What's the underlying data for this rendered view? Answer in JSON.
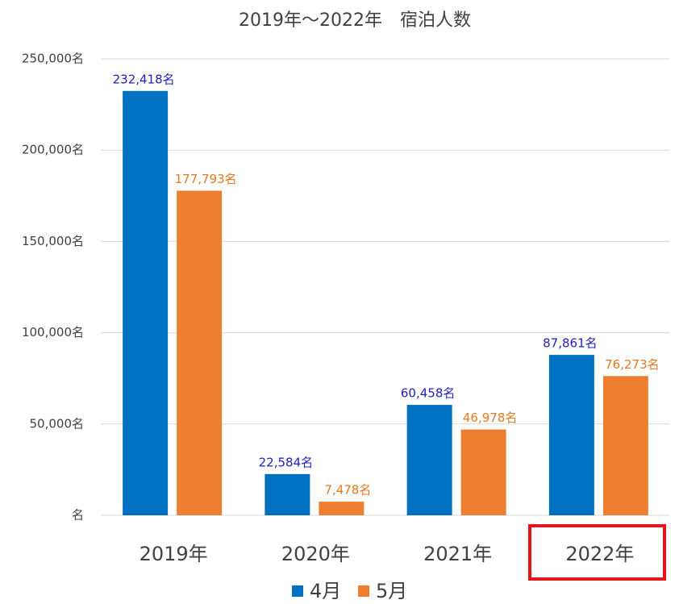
{
  "chart_data": {
    "type": "bar",
    "title": "2019年〜2022年　宿泊人数",
    "categories": [
      "2019年",
      "2020年",
      "2021年",
      "2022年"
    ],
    "series": [
      {
        "name": "4月",
        "color": "#0070c0",
        "label_color": "#2020c0",
        "values": [
          232418,
          22584,
          60458,
          87861
        ],
        "value_labels": [
          "232,418名",
          "22,584名",
          "60,458名",
          "87,861名"
        ]
      },
      {
        "name": "5月",
        "color": "#ef7f30",
        "label_color": "#e6781e",
        "values": [
          177793,
          7478,
          46978,
          76273
        ],
        "value_labels": [
          "177,793名",
          "7,478名",
          "46,978名",
          "76,273名"
        ]
      }
    ],
    "ylim": [
      0,
      250000
    ],
    "yticks": [
      {
        "value": 0,
        "label": "名"
      },
      {
        "value": 50000,
        "label": "50,000名"
      },
      {
        "value": 100000,
        "label": "100,000名"
      },
      {
        "value": 150000,
        "label": "150,000名"
      },
      {
        "value": 200000,
        "label": "200,000名"
      },
      {
        "value": 250000,
        "label": "250,000名"
      }
    ],
    "grid": true,
    "legend": "bottom"
  }
}
